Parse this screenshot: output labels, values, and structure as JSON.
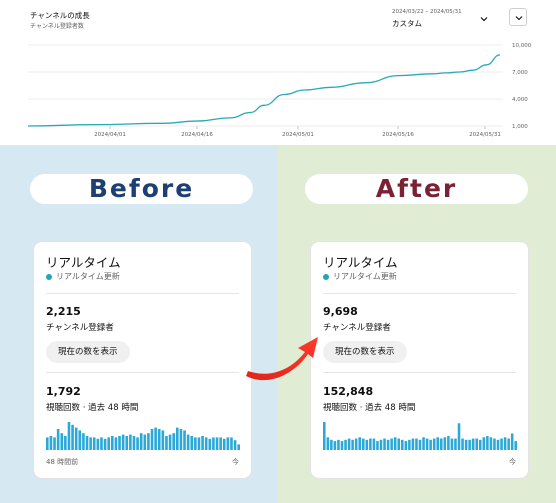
{
  "growth_chart": {
    "title": "チャンネルの成長",
    "subtitle": "チャンネル登録者数",
    "date_range": "2024/03/22 – 2024/05/31",
    "range_label": "カスタム",
    "chevron_icon": "chevron-down-icon",
    "expand_icon": "chevron-down-icon",
    "line_color": "#2aa8b8",
    "chart_data": {
      "type": "line",
      "x_tick_labels": [
        "2024/04/01",
        "2024/04/16",
        "2024/05/01",
        "2024/05/16",
        "2024/05/31"
      ],
      "y_tick_labels": [
        "10,000",
        "7,000",
        "4,000",
        "1,000"
      ],
      "ylim": [
        1000,
        10000
      ],
      "x_days": [
        0,
        10,
        20,
        25,
        30,
        33,
        35,
        38,
        41,
        45,
        50,
        55,
        60,
        62,
        64,
        66,
        68,
        70
      ],
      "values": [
        1000,
        1150,
        1300,
        1550,
        1900,
        2500,
        3300,
        4500,
        5000,
        5300,
        5800,
        6600,
        6800,
        6900,
        7000,
        7200,
        7800,
        8900
      ],
      "grid": true
    }
  },
  "before": {
    "heading": "Before",
    "card_title": "リアルタイム",
    "live_label": "リアルタイム更新",
    "subs_value": "2,215",
    "subs_label": "チャンネル登録者",
    "show_button": "現在の数を表示",
    "views_value": "1,792",
    "views_label": "視聴回数 · 過去 48 時間",
    "bar_left_label": "48 時間前",
    "bar_right_label": "今",
    "bar_color": "#2aa8d8",
    "chart_data": {
      "type": "bar",
      "values": [
        9,
        10,
        9,
        15,
        12,
        10,
        20,
        18,
        16,
        14,
        12,
        10,
        9,
        9,
        8,
        9,
        8,
        9,
        10,
        9,
        10,
        11,
        10,
        11,
        10,
        9,
        12,
        11,
        12,
        15,
        16,
        15,
        14,
        10,
        11,
        12,
        16,
        15,
        14,
        11,
        10,
        9,
        9,
        10,
        9,
        8,
        9,
        9,
        9,
        8,
        9,
        9,
        7,
        4
      ]
    }
  },
  "after": {
    "heading": "After",
    "card_title": "リアルタイム",
    "live_label": "リアルタイム更新",
    "subs_value": "9,698",
    "subs_label": "チャンネル登録者",
    "show_button": "現在の数を表示",
    "views_value": "152,848",
    "views_label": "視聴回数 · 過去 48 時間",
    "bar_right_label": "今",
    "bar_color": "#2aa8d8",
    "chart_data": {
      "type": "bar",
      "values": [
        22,
        10,
        8,
        7,
        8,
        7,
        8,
        9,
        8,
        9,
        10,
        9,
        8,
        9,
        9,
        7,
        8,
        9,
        8,
        9,
        10,
        9,
        8,
        7,
        8,
        9,
        9,
        8,
        10,
        9,
        8,
        9,
        10,
        9,
        10,
        11,
        9,
        9,
        21,
        9,
        8,
        8,
        9,
        9,
        8,
        10,
        11,
        10,
        9,
        8,
        9,
        10,
        9,
        13,
        7
      ]
    }
  }
}
